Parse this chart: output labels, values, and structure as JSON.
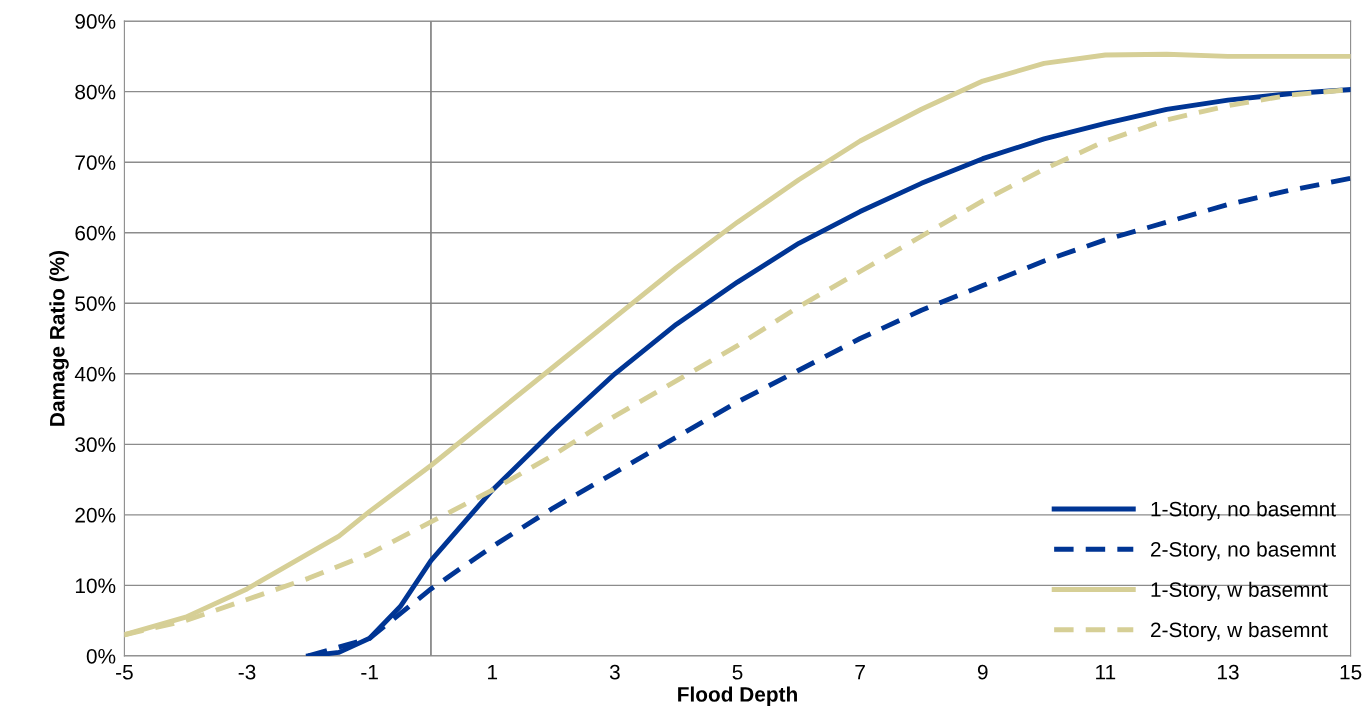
{
  "chart_data": {
    "type": "line",
    "xlabel": "Flood Depth",
    "ylabel": "Damage Ratio (%)",
    "xlim": [
      -5,
      15
    ],
    "xticks": [
      -5,
      -3,
      -1,
      1,
      3,
      5,
      7,
      9,
      11,
      13,
      15
    ],
    "ylim": [
      0,
      90
    ],
    "yticks": [
      {
        "value": 0,
        "label": "0%"
      },
      {
        "value": 10,
        "label": "10%"
      },
      {
        "value": 20,
        "label": "20%"
      },
      {
        "value": 30,
        "label": "30%"
      },
      {
        "value": 40,
        "label": "40%"
      },
      {
        "value": 50,
        "label": "50%"
      },
      {
        "value": 60,
        "label": "60%"
      },
      {
        "value": 70,
        "label": "70%"
      },
      {
        "value": 80,
        "label": "80%"
      },
      {
        "value": 90,
        "label": "90%"
      }
    ],
    "grid": "y",
    "legend": "bottom right",
    "marker": "none",
    "ref_lines": [
      {
        "axis": "x",
        "value": 0,
        "color": "#808080"
      }
    ],
    "series": [
      {
        "name": "1-Story, no basemnt",
        "color": "#003594",
        "line_style": "solid",
        "x": [
          -2,
          -1.5,
          -1,
          -0.5,
          0,
          0.5,
          1,
          2,
          3,
          4,
          5,
          6,
          7,
          8,
          9,
          10,
          11,
          12,
          13,
          14,
          15
        ],
        "values": [
          0,
          0.5,
          2.5,
          7,
          13.5,
          18.5,
          23.5,
          32,
          40,
          47,
          53,
          58.5,
          63,
          67,
          70.5,
          73.3,
          75.5,
          77.5,
          78.8,
          79.7,
          80.3
        ]
      },
      {
        "name": "2-Story, no basemnt",
        "color": "#003594",
        "line_style": "dashed",
        "x": [
          -2,
          -1,
          0,
          1,
          2,
          3,
          4,
          5,
          6,
          7,
          8,
          9,
          10,
          11,
          12,
          13,
          14,
          15
        ],
        "values": [
          0,
          2.5,
          9.5,
          15.5,
          21,
          26,
          31,
          36,
          40.5,
          45,
          49,
          52.5,
          56,
          59,
          61.5,
          64,
          66,
          67.7
        ]
      },
      {
        "name": "1-Story, w basemnt",
        "color": "#d6cf96",
        "line_style": "solid",
        "x": [
          -5,
          -4,
          -3,
          -2,
          -1.5,
          -1,
          0,
          1,
          2,
          3,
          4,
          5,
          6,
          7,
          8,
          9,
          10,
          11,
          12,
          13,
          14,
          15
        ],
        "values": [
          3,
          5.5,
          9.5,
          14.5,
          17,
          20.5,
          27,
          34,
          41,
          48,
          55,
          61.5,
          67.5,
          73,
          77.5,
          81.5,
          84,
          85.2,
          85.3,
          85,
          85,
          85
        ]
      },
      {
        "name": "2-Story, w basemnt",
        "color": "#d6cf96",
        "line_style": "dashed",
        "x": [
          -5,
          -4,
          -3,
          -2,
          -1,
          0,
          1,
          2,
          3,
          4,
          5,
          6,
          7,
          8,
          9,
          10,
          11,
          12,
          13,
          14,
          15
        ],
        "values": [
          3,
          5,
          8,
          11,
          14.5,
          19,
          23.5,
          28.5,
          34,
          39,
          44,
          49.5,
          54.5,
          59.5,
          64.5,
          69,
          73,
          76,
          78,
          79.5,
          80.3
        ]
      }
    ]
  }
}
